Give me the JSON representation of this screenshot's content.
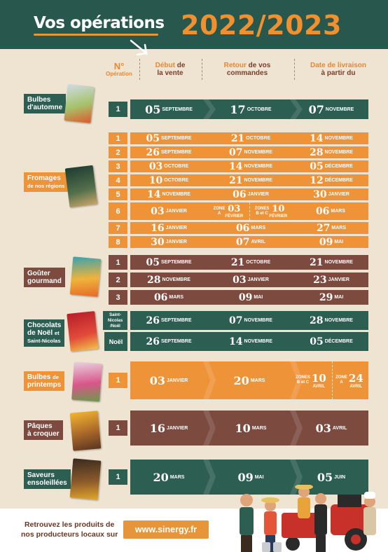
{
  "header": {
    "title": "Vos opérations",
    "year": "2022/2023"
  },
  "columns": {
    "operation": [
      "N°",
      "Opération"
    ],
    "debut": [
      "Début",
      "de",
      "la vente"
    ],
    "retour": [
      "Retour",
      "de vos",
      "commandes"
    ],
    "livraison": [
      "Date de livraison",
      "à partir du"
    ]
  },
  "products": {
    "bulbes_automne": [
      "Bulbes",
      "d'automne"
    ],
    "fromages": [
      "Fromages",
      "de nos régions"
    ],
    "gouter": [
      "Goûter",
      "gourmand"
    ],
    "chocolats": [
      "Chocolats",
      "de Noël",
      "et",
      "Saint-Nicolas"
    ],
    "bulbes_printemps": [
      "Bulbes",
      "de",
      "printemps"
    ],
    "paques": [
      "Pâques",
      "à croquer"
    ],
    "saveurs": [
      "Saveurs",
      "ensoleillées"
    ]
  },
  "rows": {
    "ba1": {
      "num": "1",
      "c1": [
        "05",
        "SEPTEMBRE"
      ],
      "c2": [
        "17",
        "OCTOBRE"
      ],
      "c3": [
        "07",
        "NOVEMBRE"
      ]
    },
    "f1": {
      "num": "1",
      "c1": [
        "05",
        "SEPTEMBRE"
      ],
      "c2": [
        "21",
        "OCTOBRE"
      ],
      "c3": [
        "14",
        "NOVEMBRE"
      ]
    },
    "f2": {
      "num": "2",
      "c1": [
        "26",
        "SEPTEMBRE"
      ],
      "c2": [
        "07",
        "NOVEMBRE"
      ],
      "c3": [
        "28",
        "NOVEMBRE"
      ]
    },
    "f3": {
      "num": "3",
      "c1": [
        "03",
        "OCTOBRE"
      ],
      "c2": [
        "14",
        "NOVEMBRE"
      ],
      "c3": [
        "05",
        "DÉCEMBRE"
      ]
    },
    "f4": {
      "num": "4",
      "c1": [
        "10",
        "OCTOBRE"
      ],
      "c2": [
        "21",
        "NOVEMBRE"
      ],
      "c3": [
        "12",
        "DÉCEMBRE"
      ]
    },
    "f5": {
      "num": "5",
      "c1": [
        "14",
        "NOVEMBRE"
      ],
      "c2": [
        "06",
        "JANVIER"
      ],
      "c3": [
        "30",
        "JANVIER"
      ]
    },
    "f6": {
      "num": "6",
      "c1": [
        "03",
        "JANVIER"
      ],
      "zA": [
        "ZONE",
        "A",
        "03",
        "FÉVRIER"
      ],
      "zB": [
        "ZONES",
        "B et C",
        "10",
        "FÉVRIER"
      ],
      "c3": [
        "06",
        "MARS"
      ]
    },
    "f7": {
      "num": "7",
      "c1": [
        "16",
        "JANVIER"
      ],
      "c2": [
        "06",
        "MARS"
      ],
      "c3": [
        "27",
        "MARS"
      ]
    },
    "f8": {
      "num": "8",
      "c1": [
        "30",
        "JANVIER"
      ],
      "c2": [
        "07",
        "AVRIL"
      ],
      "c3": [
        "09",
        "MAI"
      ]
    },
    "g1": {
      "num": "1",
      "c1": [
        "05",
        "SEPTEMBRE"
      ],
      "c2": [
        "21",
        "OCTOBRE"
      ],
      "c3": [
        "21",
        "NOVEMBRE"
      ]
    },
    "g2": {
      "num": "2",
      "c1": [
        "28",
        "NOVEMBRE"
      ],
      "c2": [
        "03",
        "JANVIER"
      ],
      "c3": [
        "23",
        "JANVIER"
      ]
    },
    "g3": {
      "num": "3",
      "c1": [
        "06",
        "MARS"
      ],
      "c2": [
        "09",
        "MAI"
      ],
      "c3": [
        "29",
        "MAI"
      ]
    },
    "c1": {
      "num": [
        "Saint-",
        "Nicolas",
        "/Noël"
      ],
      "c1": [
        "26",
        "SEPTEMBRE"
      ],
      "c2": [
        "07",
        "NOVEMBRE"
      ],
      "c3": [
        "28",
        "NOVEMBRE"
      ]
    },
    "c2": {
      "num": "Noël",
      "c1": [
        "26",
        "SEPTEMBRE"
      ],
      "c2": [
        "14",
        "NOVEMBRE"
      ],
      "c3": [
        "05",
        "DÉCEMBRE"
      ]
    },
    "bp1": {
      "num": "1",
      "c1": [
        "03",
        "JANVIER"
      ],
      "c2": [
        "20",
        "MARS"
      ],
      "zB": [
        "ZONES",
        "B et C",
        "10",
        "AVRIL"
      ],
      "zA": [
        "ZONE",
        "A",
        "24",
        "AVRIL"
      ]
    },
    "p1": {
      "num": "1",
      "c1": [
        "16",
        "JANVIER"
      ],
      "c2": [
        "10",
        "MARS"
      ],
      "c3": [
        "03",
        "AVRIL"
      ]
    },
    "s1": {
      "num": "1",
      "c1": [
        "20",
        "MARS"
      ],
      "c2": [
        "09",
        "MAI"
      ],
      "c3": [
        "05",
        "JUIN"
      ]
    }
  },
  "footer": {
    "text": [
      "Retrouvez les produits de",
      "nos producteurs locaux sur"
    ],
    "url": "www.sinergy.fr"
  },
  "colors": {
    "green": "#2d5e52",
    "orange": "#ee9338",
    "brown": "#7c4a3f",
    "bg": "#efe3d2"
  },
  "icons": [
    "chalkboard-arrow-icon",
    "farmers-illustration"
  ]
}
